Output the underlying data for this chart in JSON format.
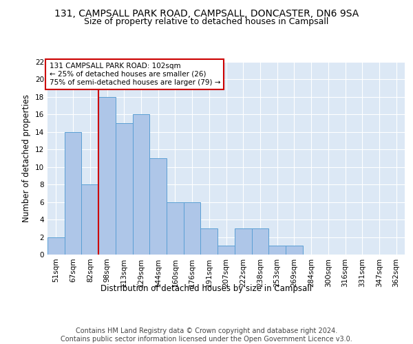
{
  "title1": "131, CAMPSALL PARK ROAD, CAMPSALL, DONCASTER, DN6 9SA",
  "title2": "Size of property relative to detached houses in Campsall",
  "xlabel": "Distribution of detached houses by size in Campsall",
  "ylabel": "Number of detached properties",
  "categories": [
    "51sqm",
    "67sqm",
    "82sqm",
    "98sqm",
    "113sqm",
    "129sqm",
    "144sqm",
    "160sqm",
    "176sqm",
    "191sqm",
    "207sqm",
    "222sqm",
    "238sqm",
    "253sqm",
    "269sqm",
    "284sqm",
    "300sqm",
    "316sqm",
    "331sqm",
    "347sqm",
    "362sqm"
  ],
  "values": [
    2,
    14,
    8,
    18,
    15,
    16,
    11,
    6,
    6,
    3,
    1,
    3,
    3,
    1,
    1,
    0,
    0,
    0,
    0,
    0,
    0
  ],
  "bar_color": "#aec6e8",
  "bar_edge_color": "#5a9fd4",
  "vline_x_index": 3,
  "vline_color": "#cc0000",
  "annotation_text": "131 CAMPSALL PARK ROAD: 102sqm\n← 25% of detached houses are smaller (26)\n75% of semi-detached houses are larger (79) →",
  "annotation_box_color": "#ffffff",
  "annotation_box_edge": "#cc0000",
  "ylim": [
    0,
    22
  ],
  "yticks": [
    0,
    2,
    4,
    6,
    8,
    10,
    12,
    14,
    16,
    18,
    20,
    22
  ],
  "background_color": "#dce8f5",
  "footer": "Contains HM Land Registry data © Crown copyright and database right 2024.\nContains public sector information licensed under the Open Government Licence v3.0.",
  "title1_fontsize": 10,
  "title2_fontsize": 9,
  "xlabel_fontsize": 8.5,
  "ylabel_fontsize": 8.5,
  "tick_fontsize": 7.5,
  "footer_fontsize": 7,
  "annot_fontsize": 7.5
}
